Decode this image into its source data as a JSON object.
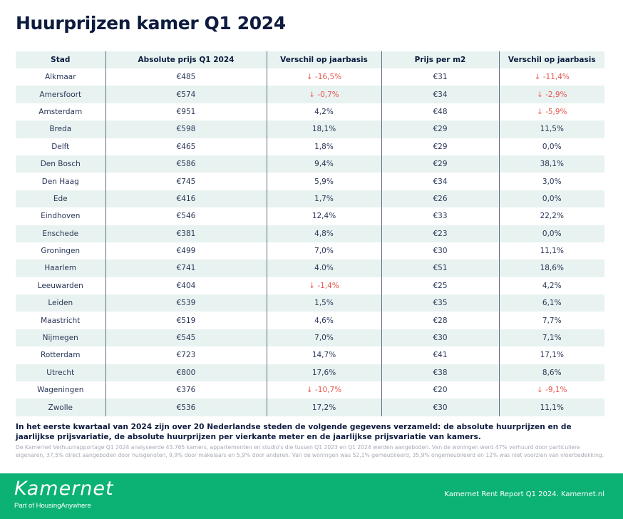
{
  "title": "Huurprijzen kamer Q1 2024",
  "table": {
    "headers": [
      "Stad",
      "Absolute prijs Q1 2024",
      "Verschil op jaarbasis",
      "Prijs per m2",
      "Verschil op jaarbasis"
    ],
    "rows": [
      {
        "city": "Alkmaar",
        "abs_price": "€485",
        "abs_change": "↓ -16,5%",
        "abs_neg": true,
        "m2_price": "€31",
        "m2_change": "↓ -11,4%",
        "m2_neg": true
      },
      {
        "city": "Amersfoort",
        "abs_price": "€574",
        "abs_change": "↓ -0,7%",
        "abs_neg": true,
        "m2_price": "€34",
        "m2_change": "↓ -2,9%",
        "m2_neg": true
      },
      {
        "city": "Amsterdam",
        "abs_price": "€951",
        "abs_change": "4,2%",
        "abs_neg": false,
        "m2_price": "€48",
        "m2_change": "↓ -5,9%",
        "m2_neg": true
      },
      {
        "city": "Breda",
        "abs_price": "€598",
        "abs_change": "18,1%",
        "abs_neg": false,
        "m2_price": "€29",
        "m2_change": "11,5%",
        "m2_neg": false
      },
      {
        "city": "Delft",
        "abs_price": "€465",
        "abs_change": "1,8%",
        "abs_neg": false,
        "m2_price": "€29",
        "m2_change": "0,0%",
        "m2_neg": false
      },
      {
        "city": "Den Bosch",
        "abs_price": "€586",
        "abs_change": "9,4%",
        "abs_neg": false,
        "m2_price": "€29",
        "m2_change": "38,1%",
        "m2_neg": false
      },
      {
        "city": "Den Haag",
        "abs_price": "€745",
        "abs_change": "5,9%",
        "abs_neg": false,
        "m2_price": "€34",
        "m2_change": "3,0%",
        "m2_neg": false
      },
      {
        "city": "Ede",
        "abs_price": "€416",
        "abs_change": "1,7%",
        "abs_neg": false,
        "m2_price": "€26",
        "m2_change": "0,0%",
        "m2_neg": false
      },
      {
        "city": "Eindhoven",
        "abs_price": "€546",
        "abs_change": "12,4%",
        "abs_neg": false,
        "m2_price": "€33",
        "m2_change": "22,2%",
        "m2_neg": false
      },
      {
        "city": "Enschede",
        "abs_price": "€381",
        "abs_change": "4,8%",
        "abs_neg": false,
        "m2_price": "€23",
        "m2_change": "0,0%",
        "m2_neg": false
      },
      {
        "city": "Groningen",
        "abs_price": "€499",
        "abs_change": "7,0%",
        "abs_neg": false,
        "m2_price": "€30",
        "m2_change": "11,1%",
        "m2_neg": false
      },
      {
        "city": "Haarlem",
        "abs_price": "€741",
        "abs_change": "4.0%",
        "abs_neg": false,
        "m2_price": "€51",
        "m2_change": "18,6%",
        "m2_neg": false
      },
      {
        "city": "Leeuwarden",
        "abs_price": "€404",
        "abs_change": "↓ -1,4%",
        "abs_neg": true,
        "m2_price": "€25",
        "m2_change": "4,2%",
        "m2_neg": false
      },
      {
        "city": "Leiden",
        "abs_price": "€539",
        "abs_change": "1,5%",
        "abs_neg": false,
        "m2_price": "€35",
        "m2_change": "6,1%",
        "m2_neg": false
      },
      {
        "city": "Maastricht",
        "abs_price": "€519",
        "abs_change": "4,6%",
        "abs_neg": false,
        "m2_price": "€28",
        "m2_change": "7,7%",
        "m2_neg": false
      },
      {
        "city": "Nijmegen",
        "abs_price": "€545",
        "abs_change": "7,0%",
        "abs_neg": false,
        "m2_price": "€30",
        "m2_change": "7,1%",
        "m2_neg": false
      },
      {
        "city": "Rotterdam",
        "abs_price": "€723",
        "abs_change": "14,7%",
        "abs_neg": false,
        "m2_price": "€41",
        "m2_change": "17,1%",
        "m2_neg": false
      },
      {
        "city": "Utrecht",
        "abs_price": "€800",
        "abs_change": "17,6%",
        "abs_neg": false,
        "m2_price": "€38",
        "m2_change": "8,6%",
        "m2_neg": false
      },
      {
        "city": "Wageningen",
        "abs_price": "€376",
        "abs_change": "↓ -10,7%",
        "abs_neg": true,
        "m2_price": "€20",
        "m2_change": "↓ -9,1%",
        "m2_neg": true
      },
      {
        "city": "Zwolle",
        "abs_price": "€536",
        "abs_change": "17,2%",
        "abs_neg": false,
        "m2_price": "€30",
        "m2_change": "11,1%",
        "m2_neg": false
      }
    ]
  },
  "description": "In het eerste kwartaal van 2024 zijn over 20 Nederlandse steden de volgende gegevens verzameld: de absolute huurprijzen en de jaarlijkse prijsvariatie, de absolute huurprijzen per vierkante meter en de jaarlijkse prijsvariatie van kamers.",
  "note": "De Kamernet Verhuurrapportage Q1 2024 analyseerde 43.765 kamers, appartementen en studio's die tussen Q1 2023 en Q1 2024 werden aangeboden. Van de woningen werd 47% verhuurd door particuliere eigenaren, 37,5% direct aangeboden door huisgenoten, 9,9% door makelaars en 5,9% door anderen. Van de woningen was 52,1% gemeubileerd, 35,9% ongemeubileerd en 12% was niet voorzien van vloerbedekking.",
  "footer": {
    "logo": "Kamernet",
    "logo_sub": "Part of HousingAnywhere",
    "right_text": "Kamernet Rent Report Q1 2024. Kamernet.nl",
    "color": "#0bb274"
  },
  "colors": {
    "negative": "#e8554e",
    "row_stripe": "#e8f3f1",
    "text_dark": "#0d1b3e"
  }
}
